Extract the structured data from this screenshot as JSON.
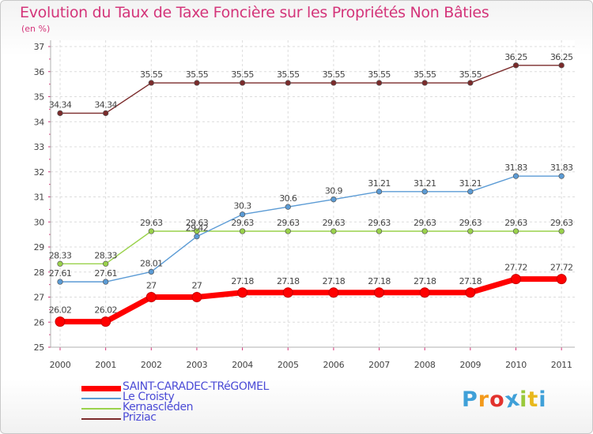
{
  "title": "Evolution du Taux de Taxe Foncière sur les Propriétés Non Bâties",
  "subtitle": "(en %)",
  "chart_data": {
    "type": "line",
    "title": "Evolution du Taux de Taxe Foncière sur les Propriétés Non Bâties",
    "ylabel": "(en %)",
    "xlabel": "",
    "x": [
      "2000",
      "2001",
      "2002",
      "2003",
      "2004",
      "2005",
      "2006",
      "2007",
      "2008",
      "2009",
      "2010",
      "2011"
    ],
    "ylim": [
      25,
      37
    ],
    "yticks": [
      "25",
      "26",
      "27",
      "28",
      "29",
      "30",
      "31",
      "32",
      "33",
      "34",
      "35",
      "36",
      "37"
    ],
    "grid": true,
    "legend_position": "bottom-left",
    "series": [
      {
        "name": "SAINT-CARADEC-TRéGOMEL",
        "color": "#ff0000",
        "values": [
          26.02,
          26.02,
          27,
          27,
          27.18,
          27.18,
          27.18,
          27.18,
          27.18,
          27.18,
          27.72,
          27.72
        ],
        "labels": [
          "26.02",
          "26.02",
          "27",
          "27",
          "27.18",
          "27.18",
          "27.18",
          "27.18",
          "27.18",
          "27.18",
          "27.72",
          "27.72"
        ]
      },
      {
        "name": "Le Croisty",
        "color": "#5b9bd5",
        "values": [
          27.61,
          27.61,
          28.01,
          29.42,
          30.3,
          30.6,
          30.9,
          31.21,
          31.21,
          31.21,
          31.83,
          31.83
        ],
        "labels": [
          "27.61",
          "27.61",
          "28.01",
          "29.42",
          "30.3",
          "30.6",
          "30.9",
          "31.21",
          "31.21",
          "31.21",
          "31.83",
          "31.83"
        ]
      },
      {
        "name": "Kernascléden",
        "color": "#9ad24b",
        "values": [
          28.33,
          28.33,
          29.63,
          29.63,
          29.63,
          29.63,
          29.63,
          29.63,
          29.63,
          29.63,
          29.63,
          29.63
        ],
        "labels": [
          "28.33",
          "28.33",
          "29.63",
          "29.63",
          "29.63",
          "29.63",
          "29.63",
          "29.63",
          "29.63",
          "29.63",
          "29.63",
          "29.63"
        ]
      },
      {
        "name": "Priziac",
        "color": "#7b2b2b",
        "values": [
          34.34,
          34.34,
          35.55,
          35.55,
          35.55,
          35.55,
          35.55,
          35.55,
          35.55,
          35.55,
          36.25,
          36.25
        ],
        "labels": [
          "34.34",
          "34.34",
          "35.55",
          "35.55",
          "35.55",
          "35.55",
          "35.55",
          "35.55",
          "35.55",
          "35.55",
          "36.25",
          "36.25"
        ]
      }
    ]
  },
  "logo": {
    "text": "Proxiti",
    "letters": [
      "P",
      "r",
      "o",
      "x",
      "i",
      "t",
      "i"
    ],
    "colors": [
      "#3fa0d8",
      "#f39a1b",
      "#e2322d",
      "#3fa0d8",
      "#9ac93c",
      "#e8b81c",
      "#3fa0d8"
    ]
  }
}
